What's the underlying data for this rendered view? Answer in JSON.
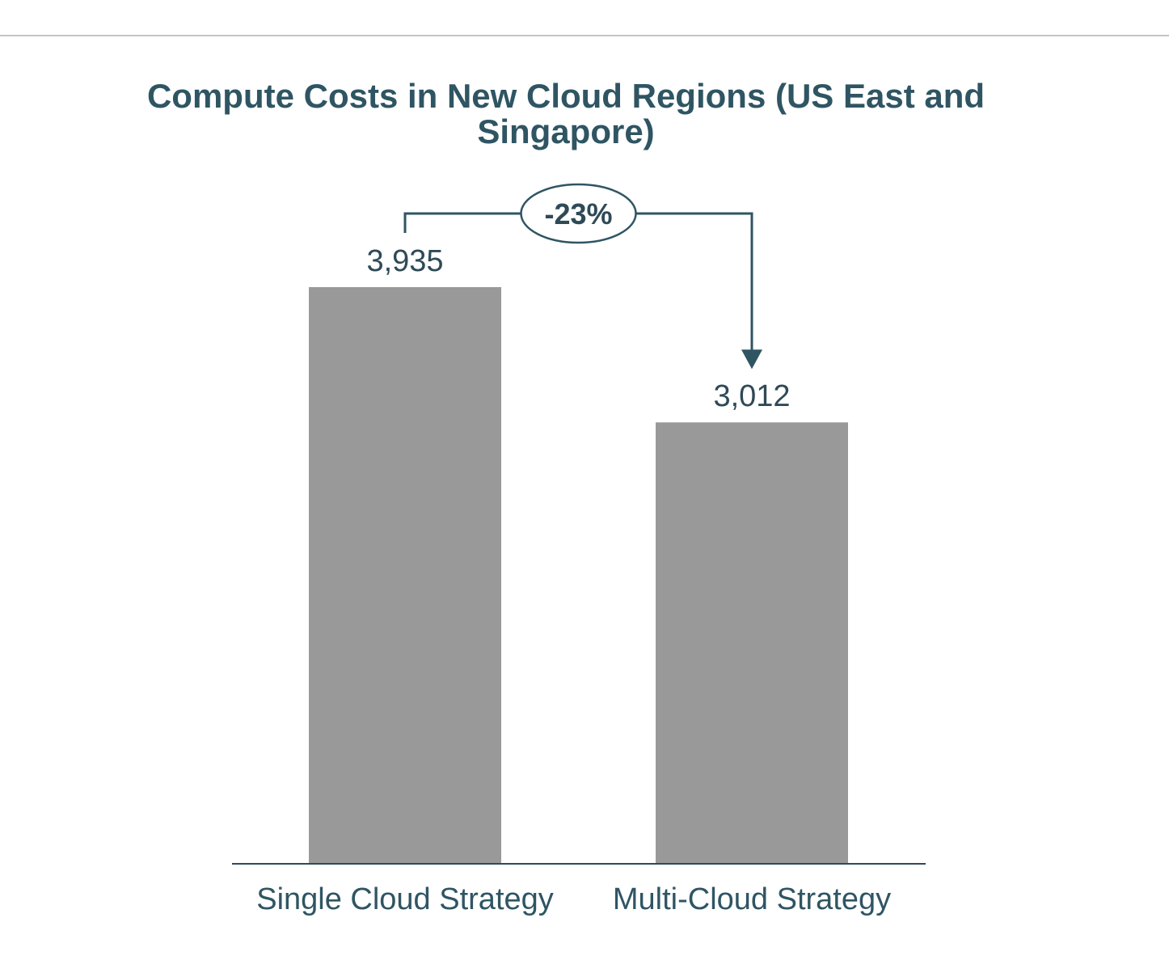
{
  "chart_data": {
    "type": "bar",
    "title": "Compute Costs in New Cloud Regions (US East and Singapore)",
    "categories": [
      "Single Cloud Strategy",
      "Multi-Cloud Strategy"
    ],
    "values": [
      3935,
      3012
    ],
    "value_labels": [
      "3,935",
      "3,012"
    ],
    "xlabel": "",
    "ylabel": "",
    "ylim": [
      0,
      3935
    ],
    "grid": false,
    "annotation": {
      "text": "-23%",
      "from": "Single Cloud Strategy",
      "to": "Multi-Cloud Strategy"
    },
    "colors": {
      "bar": "#999999",
      "text": "#2f5563",
      "accent": "#2f4a57"
    }
  }
}
